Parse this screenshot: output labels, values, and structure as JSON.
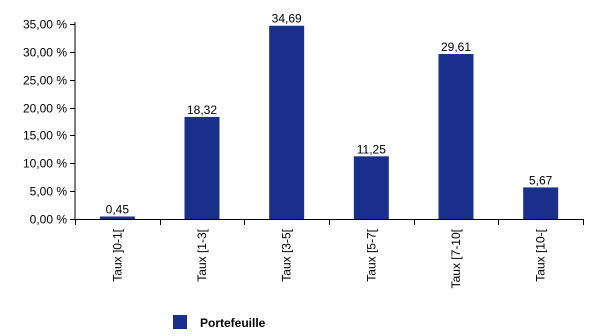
{
  "chart_data": {
    "type": "bar",
    "title": "",
    "xlabel": "",
    "ylabel": "",
    "categories": [
      "Taux ]0-1[",
      "Taux [1-3[",
      "Taux [3-5[",
      "Taux [5-7[",
      "Taux [7-10[",
      "Taux [10-["
    ],
    "series": [
      {
        "name": "Portefeuille",
        "values": [
          0.45,
          18.32,
          34.69,
          11.25,
          29.61,
          5.67
        ],
        "value_labels": [
          "0,45",
          "18,32",
          "34,69",
          "11,25",
          "29,61",
          "5,67"
        ],
        "color": "#1a2f8c"
      }
    ],
    "ylim": [
      0,
      35
    ],
    "yticks": [
      0,
      5,
      10,
      15,
      20,
      25,
      30,
      35
    ],
    "ytick_labels": [
      "0,00 %",
      "5,00 %",
      "10,00 %",
      "15,00 %",
      "20,00 %",
      "25,00 %",
      "30,00 %",
      "35,00 %"
    ],
    "grid": false,
    "legend_position": "bottom-center"
  }
}
